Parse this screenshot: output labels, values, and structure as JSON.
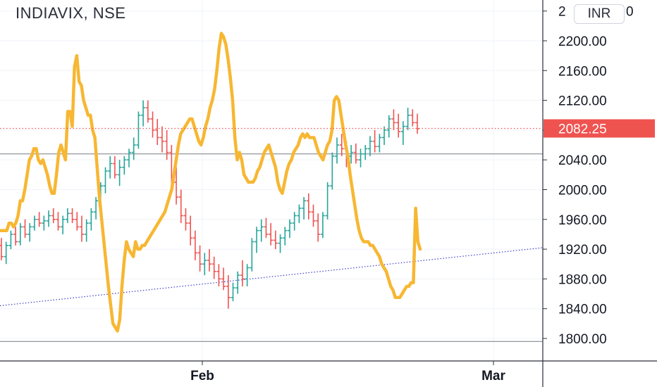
{
  "chart_data": {
    "type": "line",
    "title": "INDIAVIX, NSE",
    "currency": "INR",
    "last_price_label": "2082.25",
    "y_axis": {
      "range": [
        1780,
        2240
      ],
      "ticks": [
        "1800.00",
        "1840.00",
        "1880.00",
        "1920.00",
        "1960.00",
        "2000.00",
        "2040.00",
        "2080.00",
        "2120.00",
        "2160.00",
        "2200.00"
      ],
      "partial_top_label": "2"
    },
    "x_axis": {
      "ticks": [
        "Feb",
        "Mar"
      ]
    },
    "grid": true,
    "colors": {
      "up": "#26a69a",
      "down": "#ef5350",
      "overlay": "#f7b733",
      "last_price": "#ef5350",
      "trendline": "#3f3fc9",
      "hline": "#787b86",
      "grid": "#f0f3fa",
      "axis_text": "#131722"
    },
    "horizontal_lines": [
      2048,
      1796
    ],
    "trendline": {
      "from": [
        0,
        1844
      ],
      "to": [
        175,
        1922
      ]
    },
    "overlay_series": {
      "values": [
        1945,
        1945,
        1945,
        1945,
        1955,
        1955,
        1950,
        1955,
        1965,
        1985,
        1985,
        2000,
        2020,
        2040,
        2045,
        2055,
        2055,
        2040,
        2035,
        2040,
        2030,
        2020,
        2005,
        1995,
        1995,
        2020,
        2050,
        2060,
        2050,
        2040,
        2105,
        2105,
        2085,
        2165,
        2180,
        2145,
        2140,
        2120,
        2110,
        2100,
        2100,
        2080,
        2070,
        2030,
        1990,
        1960,
        1930,
        1900,
        1870,
        1845,
        1820,
        1815,
        1810,
        1825,
        1870,
        1905,
        1930,
        1920,
        1915,
        1910,
        1930,
        1920,
        1920,
        1925,
        1925,
        1930,
        1935,
        1940,
        1945,
        1950,
        1955,
        1960,
        1965,
        1970,
        1980,
        1990,
        2000,
        2020,
        2040,
        2060,
        2075,
        2080,
        2085,
        2090,
        2095,
        2095,
        2085,
        2075,
        2065,
        2060,
        2070,
        2085,
        2095,
        2110,
        2120,
        2135,
        2160,
        2190,
        2210,
        2205,
        2195,
        2175,
        2150,
        2120,
        2070,
        2040,
        2050,
        2040,
        2020,
        2015,
        2010,
        2010,
        2010,
        2015,
        2025,
        2030,
        2040,
        2050,
        2055,
        2060,
        2050,
        2040,
        2030,
        2010,
        2000,
        1995,
        2010,
        2025,
        2035,
        2040,
        2050,
        2055,
        2060,
        2070,
        2075,
        2070,
        2075,
        2070,
        2070,
        2070,
        2060,
        2050,
        2045,
        2040,
        2050,
        2060,
        2065,
        2080,
        2120,
        2125,
        2120,
        2100,
        2080,
        2060,
        2045,
        2020,
        2000,
        1980,
        1960,
        1945,
        1935,
        1930,
        1930,
        1930,
        1925,
        1925,
        1920,
        1915,
        1910,
        1900,
        1895,
        1890,
        1880,
        1870,
        1865,
        1855,
        1855,
        1855,
        1860,
        1865,
        1870,
        1870,
        1875,
        1875,
        1975,
        1930,
        1920
      ]
    },
    "series": [
      {
        "type": "ohlc",
        "values": [
          [
            1925,
            1935,
            1905,
            1910
          ],
          [
            1910,
            1930,
            1900,
            1925
          ],
          [
            1925,
            1945,
            1920,
            1940
          ],
          [
            1940,
            1950,
            1925,
            1930
          ],
          [
            1930,
            1955,
            1925,
            1950
          ],
          [
            1950,
            1960,
            1935,
            1940
          ],
          [
            1940,
            1955,
            1930,
            1950
          ],
          [
            1950,
            1965,
            1945,
            1960
          ],
          [
            1960,
            1970,
            1950,
            1955
          ],
          [
            1955,
            1965,
            1945,
            1958
          ],
          [
            1958,
            1972,
            1950,
            1965
          ],
          [
            1965,
            1975,
            1955,
            1960
          ],
          [
            1960,
            1970,
            1945,
            1950
          ],
          [
            1950,
            1965,
            1940,
            1960
          ],
          [
            1960,
            1975,
            1955,
            1968
          ],
          [
            1968,
            1975,
            1955,
            1960
          ],
          [
            1960,
            1970,
            1945,
            1950
          ],
          [
            1950,
            1965,
            1930,
            1940
          ],
          [
            1940,
            1960,
            1930,
            1955
          ],
          [
            1955,
            1975,
            1945,
            1970
          ],
          [
            1970,
            1990,
            1960,
            1985
          ],
          [
            1985,
            2010,
            1975,
            2005
          ],
          [
            2005,
            2030,
            1995,
            2025
          ],
          [
            2025,
            2045,
            2015,
            2035
          ],
          [
            2035,
            2045,
            2015,
            2020
          ],
          [
            2020,
            2040,
            2005,
            2030
          ],
          [
            2030,
            2045,
            2020,
            2040
          ],
          [
            2040,
            2055,
            2030,
            2050
          ],
          [
            2050,
            2070,
            2040,
            2060
          ],
          [
            2060,
            2105,
            2055,
            2100
          ],
          [
            2100,
            2120,
            2085,
            2110
          ],
          [
            2110,
            2120,
            2090,
            2095
          ],
          [
            2095,
            2105,
            2070,
            2080
          ],
          [
            2080,
            2095,
            2060,
            2070
          ],
          [
            2070,
            2085,
            2050,
            2065
          ],
          [
            2065,
            2080,
            2040,
            2050
          ],
          [
            2050,
            2060,
            2000,
            2010
          ],
          [
            2010,
            2030,
            1980,
            1990
          ],
          [
            1990,
            2000,
            1955,
            1965
          ],
          [
            1965,
            1975,
            1945,
            1955
          ],
          [
            1955,
            1965,
            1925,
            1935
          ],
          [
            1935,
            1945,
            1905,
            1915
          ],
          [
            1915,
            1925,
            1890,
            1900
          ],
          [
            1900,
            1915,
            1885,
            1905
          ],
          [
            1905,
            1920,
            1890,
            1900
          ],
          [
            1900,
            1910,
            1880,
            1890
          ],
          [
            1890,
            1900,
            1870,
            1880
          ],
          [
            1880,
            1895,
            1865,
            1870
          ],
          [
            1870,
            1885,
            1840,
            1855
          ],
          [
            1855,
            1875,
            1850,
            1868
          ],
          [
            1868,
            1890,
            1860,
            1885
          ],
          [
            1885,
            1905,
            1870,
            1880
          ],
          [
            1880,
            1900,
            1870,
            1895
          ],
          [
            1895,
            1935,
            1890,
            1930
          ],
          [
            1930,
            1950,
            1915,
            1945
          ],
          [
            1945,
            1960,
            1930,
            1950
          ],
          [
            1950,
            1962,
            1935,
            1940
          ],
          [
            1940,
            1955,
            1925,
            1932
          ],
          [
            1932,
            1945,
            1920,
            1928
          ],
          [
            1928,
            1940,
            1915,
            1935
          ],
          [
            1935,
            1950,
            1925,
            1945
          ],
          [
            1945,
            1960,
            1935,
            1955
          ],
          [
            1955,
            1970,
            1945,
            1965
          ],
          [
            1965,
            1980,
            1955,
            1975
          ],
          [
            1975,
            1990,
            1960,
            1985
          ],
          [
            1985,
            1995,
            1960,
            1970
          ],
          [
            1970,
            1980,
            1950,
            1958
          ],
          [
            1958,
            1968,
            1930,
            1940
          ],
          [
            1940,
            1970,
            1935,
            1965
          ],
          [
            1965,
            2010,
            1960,
            2005
          ],
          [
            2005,
            2050,
            2000,
            2045
          ],
          [
            2045,
            2070,
            2035,
            2060
          ],
          [
            2060,
            2075,
            2045,
            2055
          ],
          [
            2055,
            2065,
            2030,
            2045
          ],
          [
            2045,
            2060,
            2035,
            2050
          ],
          [
            2050,
            2062,
            2035,
            2040
          ],
          [
            2040,
            2055,
            2030,
            2048
          ],
          [
            2048,
            2060,
            2040,
            2055
          ],
          [
            2055,
            2072,
            2045,
            2065
          ],
          [
            2065,
            2080,
            2050,
            2058
          ],
          [
            2058,
            2075,
            2050,
            2070
          ],
          [
            2070,
            2085,
            2060,
            2080
          ],
          [
            2080,
            2100,
            2070,
            2095
          ],
          [
            2095,
            2108,
            2080,
            2090
          ],
          [
            2090,
            2102,
            2070,
            2078
          ],
          [
            2078,
            2092,
            2060,
            2085
          ],
          [
            2085,
            2110,
            2080,
            2100
          ],
          [
            2100,
            2108,
            2085,
            2090
          ],
          [
            2090,
            2102,
            2075,
            2082
          ]
        ]
      }
    ]
  }
}
